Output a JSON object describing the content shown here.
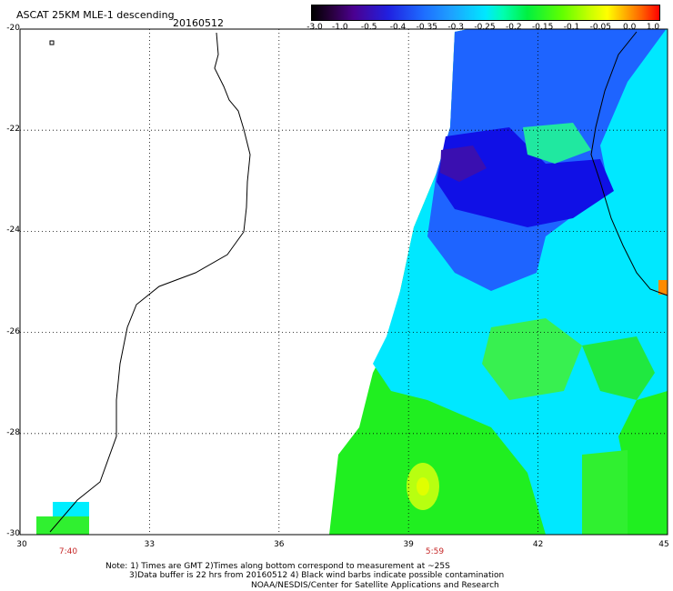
{
  "header": {
    "title": "ASCAT 25KM MLE-1 descending",
    "date": "20160512"
  },
  "colorbar": {
    "ticks": [
      "-3.0",
      "-1.0",
      "-0.5",
      "-0.4",
      "-0.35",
      "-0.3",
      "-0.25",
      "-0.2",
      "-0.15",
      "-0.1",
      "-0.05",
      "0.0",
      "1.0"
    ]
  },
  "axes": {
    "y_labels": [
      "-20",
      "-22",
      "-24",
      "-26",
      "-28",
      "-30"
    ],
    "x_labels": [
      "30",
      "33",
      "36",
      "39",
      "42",
      "45"
    ],
    "lat_range": [
      -30,
      -20
    ],
    "lon_range": [
      30,
      45
    ]
  },
  "time_labels": [
    {
      "text": "7:40",
      "lon": 31.4
    },
    {
      "text": "5:59",
      "lon": 39.9
    }
  ],
  "notes": {
    "line1": "Note: 1) Times are GMT 2)Times along bottom correspond to measurement at ~25S",
    "line2": "3)Data buffer is 22 hrs from 20160512 4) Black wind barbs indicate possible contamination",
    "line3": "NOAA/NESDIS/Center for Satellite Applications and Research"
  },
  "colors": {
    "swath_green": "#22ee22",
    "swath_cyan": "#00eeff",
    "swath_blue": "#1e5cff",
    "swath_dark": "#1010e0",
    "swath_purple": "#3a10b0",
    "swath_yellow": "#c8ff00"
  }
}
